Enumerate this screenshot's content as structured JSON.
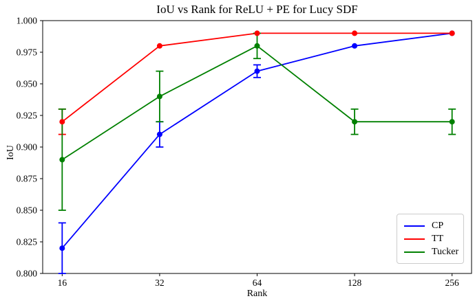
{
  "chart_data": {
    "type": "line",
    "title": "IoU vs Rank for ReLU + PE for Lucy SDF",
    "xlabel": "Rank",
    "ylabel": "IoU",
    "categories": [
      "16",
      "32",
      "64",
      "128",
      "256"
    ],
    "ylim": [
      0.8,
      1.0
    ],
    "ytick_step": 0.025,
    "ytick_labels": [
      "0.800",
      "0.825",
      "0.850",
      "0.875",
      "0.900",
      "0.925",
      "0.950",
      "0.975",
      "1.000"
    ],
    "grid": false,
    "legend_position": "lower right",
    "marker": "circle",
    "error_bars": true,
    "series": [
      {
        "name": "CP",
        "color": "#0000ff",
        "values": [
          0.82,
          0.91,
          0.96,
          0.98,
          0.99
        ],
        "errors": [
          0.02,
          0.01,
          0.005,
          0,
          0
        ]
      },
      {
        "name": "TT",
        "color": "#ff0000",
        "values": [
          0.92,
          0.98,
          0.99,
          0.99,
          0.99
        ],
        "errors": [
          0.01,
          0,
          0,
          0,
          0
        ]
      },
      {
        "name": "Tucker",
        "color": "#008000",
        "values": [
          0.89,
          0.94,
          0.98,
          0.92,
          0.92
        ],
        "errors": [
          0.04,
          0.02,
          0.01,
          0.01,
          0.01
        ]
      }
    ],
    "axis_color": "#000000",
    "background_color": "#ffffff"
  }
}
